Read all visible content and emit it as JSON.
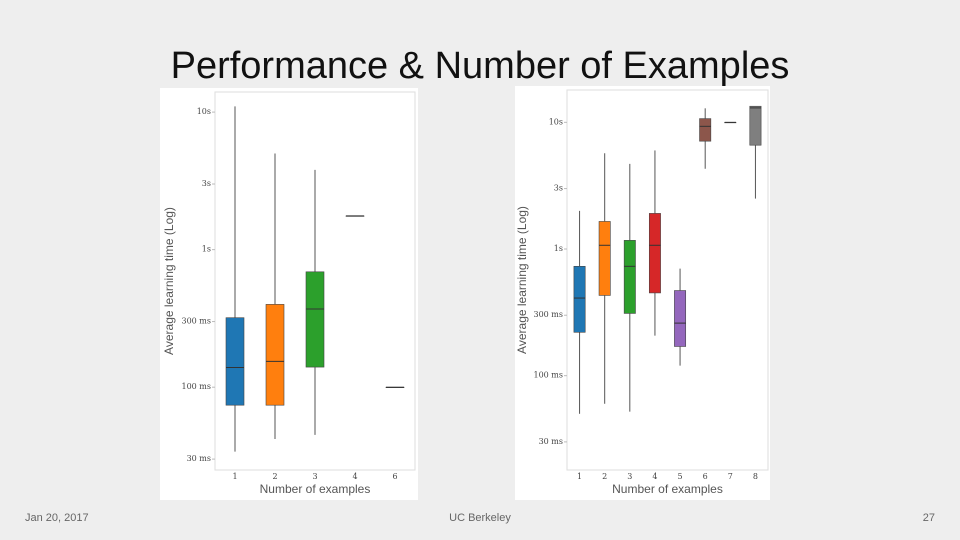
{
  "slide": {
    "title": "Performance & Number of Examples",
    "date": "Jan 20, 2017",
    "organization": "UC Berkeley",
    "page": "27"
  },
  "chart_data": [
    {
      "type": "box",
      "log_y": true,
      "ylabel": "Average learning time (Log)",
      "xlabel": "Number of examples",
      "categories": [
        "1",
        "2",
        "3",
        "4",
        "6"
      ],
      "colors": [
        "#1f77b4",
        "#ff7f0e",
        "#2ca02c",
        "#d62728",
        "#9467bd"
      ],
      "boxes": [
        {
          "min": 0.034,
          "q1": 0.074,
          "median": 0.139,
          "q3": 0.32,
          "max": 11
        },
        {
          "min": 0.042,
          "q1": 0.074,
          "median": 0.154,
          "q3": 0.4,
          "max": 5
        },
        {
          "min": 0.045,
          "q1": 0.14,
          "median": 0.37,
          "q3": 0.69,
          "max": 3.8
        },
        {
          "min": 1.76,
          "q1": 1.76,
          "median": 1.76,
          "q3": 1.76,
          "max": 1.76
        },
        {
          "min": 0.1,
          "q1": 0.1,
          "median": 0.1,
          "q3": 0.1,
          "max": 0.1
        }
      ],
      "ylim": [
        0.025,
        14
      ],
      "yticks": [
        {
          "value": 0.03,
          "label": "30 ms"
        },
        {
          "value": 0.1,
          "label": "100 ms"
        },
        {
          "value": 0.3,
          "label": "300 ms"
        },
        {
          "value": 1,
          "label": "1s"
        },
        {
          "value": 3,
          "label": "3s"
        },
        {
          "value": 10,
          "label": "10s"
        }
      ]
    },
    {
      "type": "box",
      "log_y": true,
      "ylabel": "Average learning time (Log)",
      "xlabel": "Number of examples",
      "categories": [
        "1",
        "2",
        "3",
        "4",
        "5",
        "6",
        "7",
        "8"
      ],
      "colors": [
        "#1f77b4",
        "#ff7f0e",
        "#2ca02c",
        "#d62728",
        "#9467bd",
        "#8c564b",
        "#e377c2",
        "#7f7f7f"
      ],
      "boxes": [
        {
          "min": 0.05,
          "q1": 0.22,
          "median": 0.41,
          "q3": 0.73,
          "max": 2
        },
        {
          "min": 0.06,
          "q1": 0.43,
          "median": 1.07,
          "q3": 1.65,
          "max": 5.7
        },
        {
          "min": 0.052,
          "q1": 0.31,
          "median": 0.73,
          "q3": 1.17,
          "max": 4.7
        },
        {
          "min": 0.207,
          "q1": 0.45,
          "median": 1.07,
          "q3": 1.91,
          "max": 6
        },
        {
          "min": 0.12,
          "q1": 0.17,
          "median": 0.26,
          "q3": 0.47,
          "max": 0.7
        },
        {
          "min": 4.3,
          "q1": 7.1,
          "median": 9.3,
          "q3": 10.7,
          "max": 12.9
        },
        {
          "min": 10,
          "q1": 10,
          "median": 10,
          "q3": 10,
          "max": 10
        },
        {
          "min": 2.5,
          "q1": 6.6,
          "median": 13,
          "q3": 13.4,
          "max": 13.4
        }
      ],
      "ylim": [
        0.018,
        18
      ],
      "yticks": [
        {
          "value": 0.03,
          "label": "30 ms"
        },
        {
          "value": 0.1,
          "label": "100 ms"
        },
        {
          "value": 0.3,
          "label": "300 ms"
        },
        {
          "value": 1,
          "label": "1s"
        },
        {
          "value": 3,
          "label": "3s"
        },
        {
          "value": 10,
          "label": "10s"
        }
      ]
    }
  ]
}
